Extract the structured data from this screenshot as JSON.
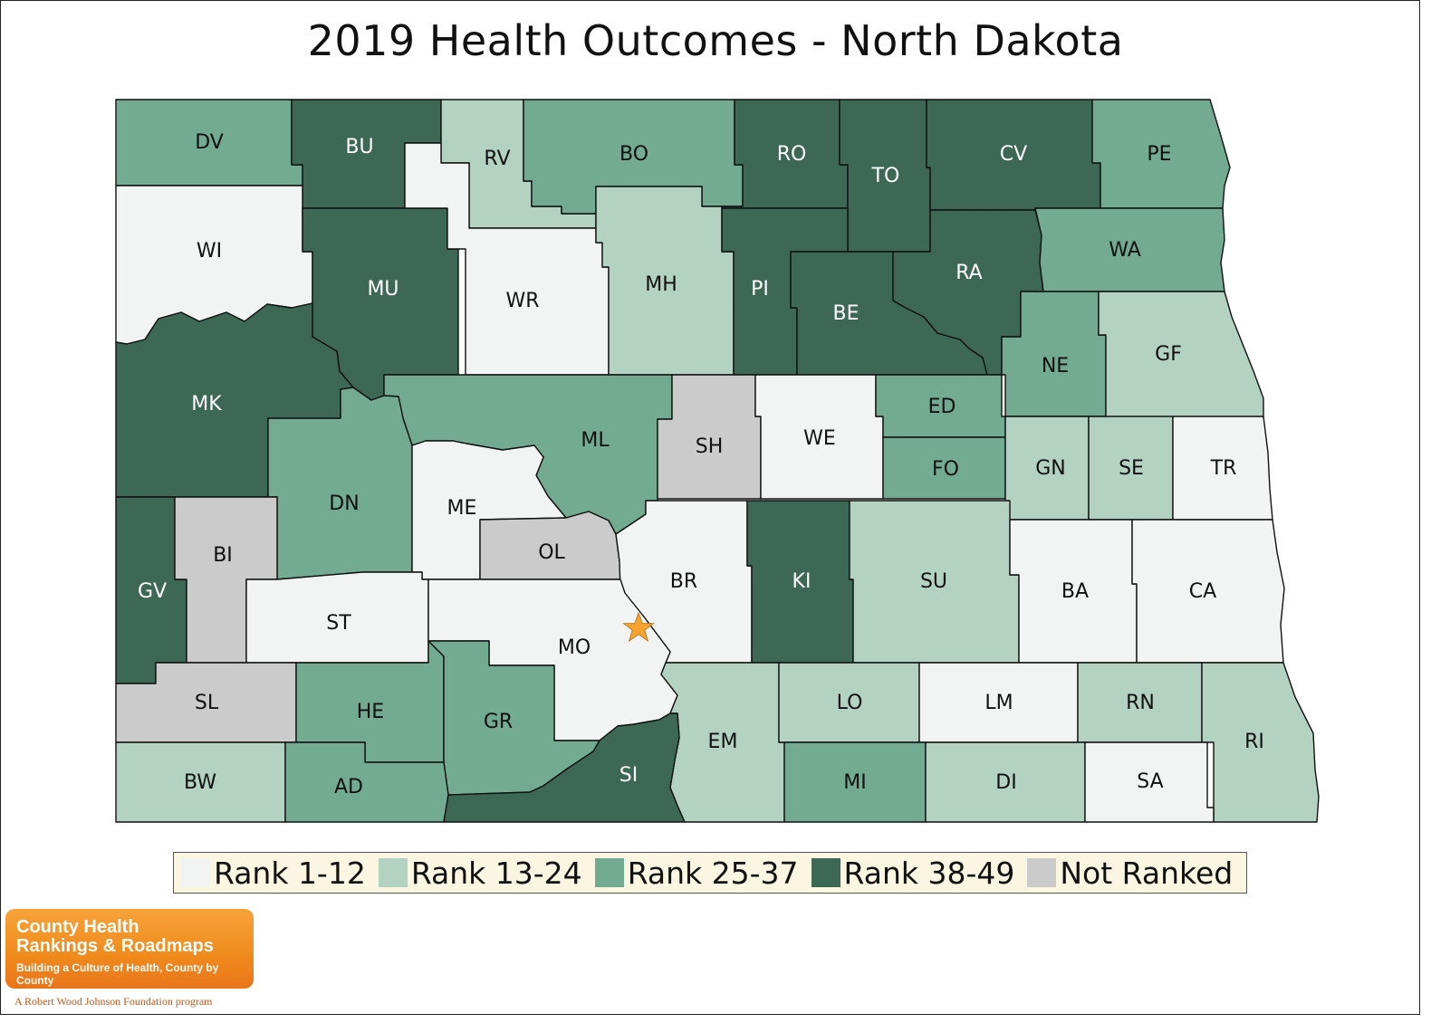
{
  "title": "2019 Health Outcomes - North Dakota",
  "colors": {
    "rank_1_12": "#f1f4f2",
    "rank_13_24": "#b3d2c2",
    "rank_25_37": "#72ab91",
    "rank_38_49": "#3d6855",
    "not_ranked": "#cbcbcb",
    "capital_star": "#f5a431",
    "legend_bg": "#fbf6e1"
  },
  "legend": [
    {
      "key": "rank_1_12",
      "label": "Rank 1-12"
    },
    {
      "key": "rank_13_24",
      "label": "Rank 13-24"
    },
    {
      "key": "rank_25_37",
      "label": "Rank 25-37"
    },
    {
      "key": "rank_38_49",
      "label": "Rank 38-49"
    },
    {
      "key": "not_ranked",
      "label": "Not Ranked"
    }
  ],
  "counties": [
    {
      "abbr": "DV",
      "category": "rank_25_37"
    },
    {
      "abbr": "BU",
      "category": "rank_38_49"
    },
    {
      "abbr": "RV",
      "category": "rank_13_24"
    },
    {
      "abbr": "BO",
      "category": "rank_25_37"
    },
    {
      "abbr": "RO",
      "category": "rank_38_49"
    },
    {
      "abbr": "TO",
      "category": "rank_38_49"
    },
    {
      "abbr": "CV",
      "category": "rank_38_49"
    },
    {
      "abbr": "PE",
      "category": "rank_25_37"
    },
    {
      "abbr": "WI",
      "category": "rank_1_12"
    },
    {
      "abbr": "MU",
      "category": "rank_38_49"
    },
    {
      "abbr": "WR",
      "category": "rank_1_12"
    },
    {
      "abbr": "MH",
      "category": "rank_13_24"
    },
    {
      "abbr": "PI",
      "category": "rank_38_49"
    },
    {
      "abbr": "BE",
      "category": "rank_38_49"
    },
    {
      "abbr": "RA",
      "category": "rank_38_49"
    },
    {
      "abbr": "WA",
      "category": "rank_25_37"
    },
    {
      "abbr": "NE",
      "category": "rank_25_37"
    },
    {
      "abbr": "GF",
      "category": "rank_13_24"
    },
    {
      "abbr": "MK",
      "category": "rank_38_49"
    },
    {
      "abbr": "ML",
      "category": "rank_25_37"
    },
    {
      "abbr": "SH",
      "category": "not_ranked"
    },
    {
      "abbr": "WE",
      "category": "rank_1_12"
    },
    {
      "abbr": "ED",
      "category": "rank_25_37"
    },
    {
      "abbr": "FO",
      "category": "rank_25_37"
    },
    {
      "abbr": "GN",
      "category": "rank_13_24"
    },
    {
      "abbr": "SE",
      "category": "rank_13_24"
    },
    {
      "abbr": "TR",
      "category": "rank_1_12"
    },
    {
      "abbr": "DN",
      "category": "rank_25_37"
    },
    {
      "abbr": "ME",
      "category": "rank_1_12"
    },
    {
      "abbr": "OL",
      "category": "not_ranked"
    },
    {
      "abbr": "BR",
      "category": "rank_1_12"
    },
    {
      "abbr": "KI",
      "category": "rank_38_49"
    },
    {
      "abbr": "SU",
      "category": "rank_13_24"
    },
    {
      "abbr": "BA",
      "category": "rank_1_12"
    },
    {
      "abbr": "CA",
      "category": "rank_1_12"
    },
    {
      "abbr": "GV",
      "category": "rank_38_49"
    },
    {
      "abbr": "BI",
      "category": "not_ranked"
    },
    {
      "abbr": "ST",
      "category": "rank_1_12"
    },
    {
      "abbr": "MO",
      "category": "rank_1_12"
    },
    {
      "abbr": "SL",
      "category": "not_ranked"
    },
    {
      "abbr": "HE",
      "category": "rank_25_37"
    },
    {
      "abbr": "GR",
      "category": "rank_25_37"
    },
    {
      "abbr": "EM",
      "category": "rank_13_24"
    },
    {
      "abbr": "LO",
      "category": "rank_13_24"
    },
    {
      "abbr": "LM",
      "category": "rank_1_12"
    },
    {
      "abbr": "RN",
      "category": "rank_13_24"
    },
    {
      "abbr": "RI",
      "category": "rank_13_24"
    },
    {
      "abbr": "BW",
      "category": "rank_13_24"
    },
    {
      "abbr": "AD",
      "category": "rank_25_37"
    },
    {
      "abbr": "SI",
      "category": "rank_38_49"
    },
    {
      "abbr": "MI",
      "category": "rank_25_37"
    },
    {
      "abbr": "DI",
      "category": "rank_13_24"
    },
    {
      "abbr": "SA",
      "category": "rank_1_12"
    }
  ],
  "capital_icon": "star-icon",
  "logo": {
    "line1": "County Health",
    "line2": "Rankings & Roadmaps",
    "tagline": "Building a Culture of Health, County by County",
    "footer": "A Robert Wood Johnson Foundation program"
  }
}
